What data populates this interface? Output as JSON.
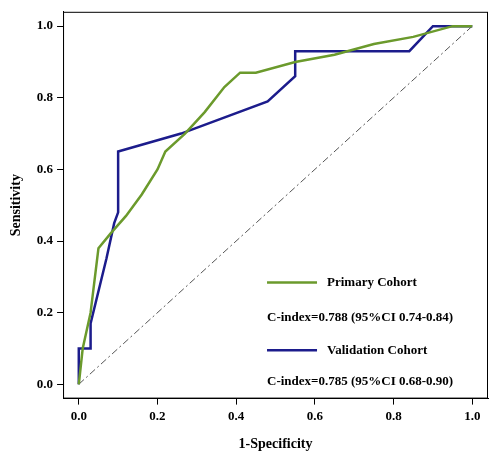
{
  "chart_data": {
    "type": "line",
    "x_label": "1-Specificity",
    "y_label": "Sensitivity",
    "xlim": [
      -0.04,
      1.04
    ],
    "ylim": [
      -0.04,
      1.04
    ],
    "xticks": [
      {
        "value": 0,
        "label": "0.0"
      },
      {
        "value": 0.2,
        "label": "0.2"
      },
      {
        "value": 0.4,
        "label": "0.4"
      },
      {
        "value": 0.6,
        "label": "0.6"
      },
      {
        "value": 0.8,
        "label": "0.8"
      },
      {
        "value": 1,
        "label": "1.0"
      }
    ],
    "yticks": [
      {
        "value": 0,
        "label": "0.0"
      },
      {
        "value": 0.2,
        "label": "0.2"
      },
      {
        "value": 0.4,
        "label": "0.4"
      },
      {
        "value": 0.6,
        "label": "0.6"
      },
      {
        "value": 0.8,
        "label": "0.8"
      },
      {
        "value": 1,
        "label": "1.0"
      }
    ],
    "grid": false,
    "legend": "bottom right",
    "annotations": [
      "C-index=0.788 (95%CI 0.74-0.84)",
      "C-index=0.785 (95%CI 0.68-0.90)"
    ],
    "series": [
      {
        "name": "Primary Cohort",
        "color": "#6b9a2c",
        "line_style": "solid",
        "x": [
          0,
          0.01,
          0.03,
          0.05,
          0.08,
          0.12,
          0.16,
          0.2,
          0.22,
          0.27,
          0.32,
          0.37,
          0.41,
          0.45,
          0.55,
          0.65,
          0.75,
          0.85,
          0.95,
          1
        ],
        "values": [
          0,
          0.1,
          0.2,
          0.38,
          0.42,
          0.47,
          0.53,
          0.6,
          0.65,
          0.7,
          0.76,
          0.83,
          0.87,
          0.87,
          0.9,
          0.92,
          0.95,
          0.97,
          1,
          1
        ]
      },
      {
        "name": "Validation Cohort",
        "color": "#1c1c8c",
        "line_style": "solid",
        "x": [
          0,
          0,
          0.03,
          0.03,
          0.07,
          0.09,
          0.1,
          0.1,
          0.26,
          0.48,
          0.55,
          0.55,
          0.84,
          0.9,
          1
        ],
        "values": [
          0,
          0.1,
          0.1,
          0.17,
          0.35,
          0.45,
          0.48,
          0.65,
          0.7,
          0.79,
          0.86,
          0.93,
          0.93,
          1,
          1
        ]
      },
      {
        "color": "#555555",
        "line_style": "dashdot",
        "x": [
          0,
          1
        ],
        "values": [
          0,
          1
        ]
      }
    ]
  }
}
